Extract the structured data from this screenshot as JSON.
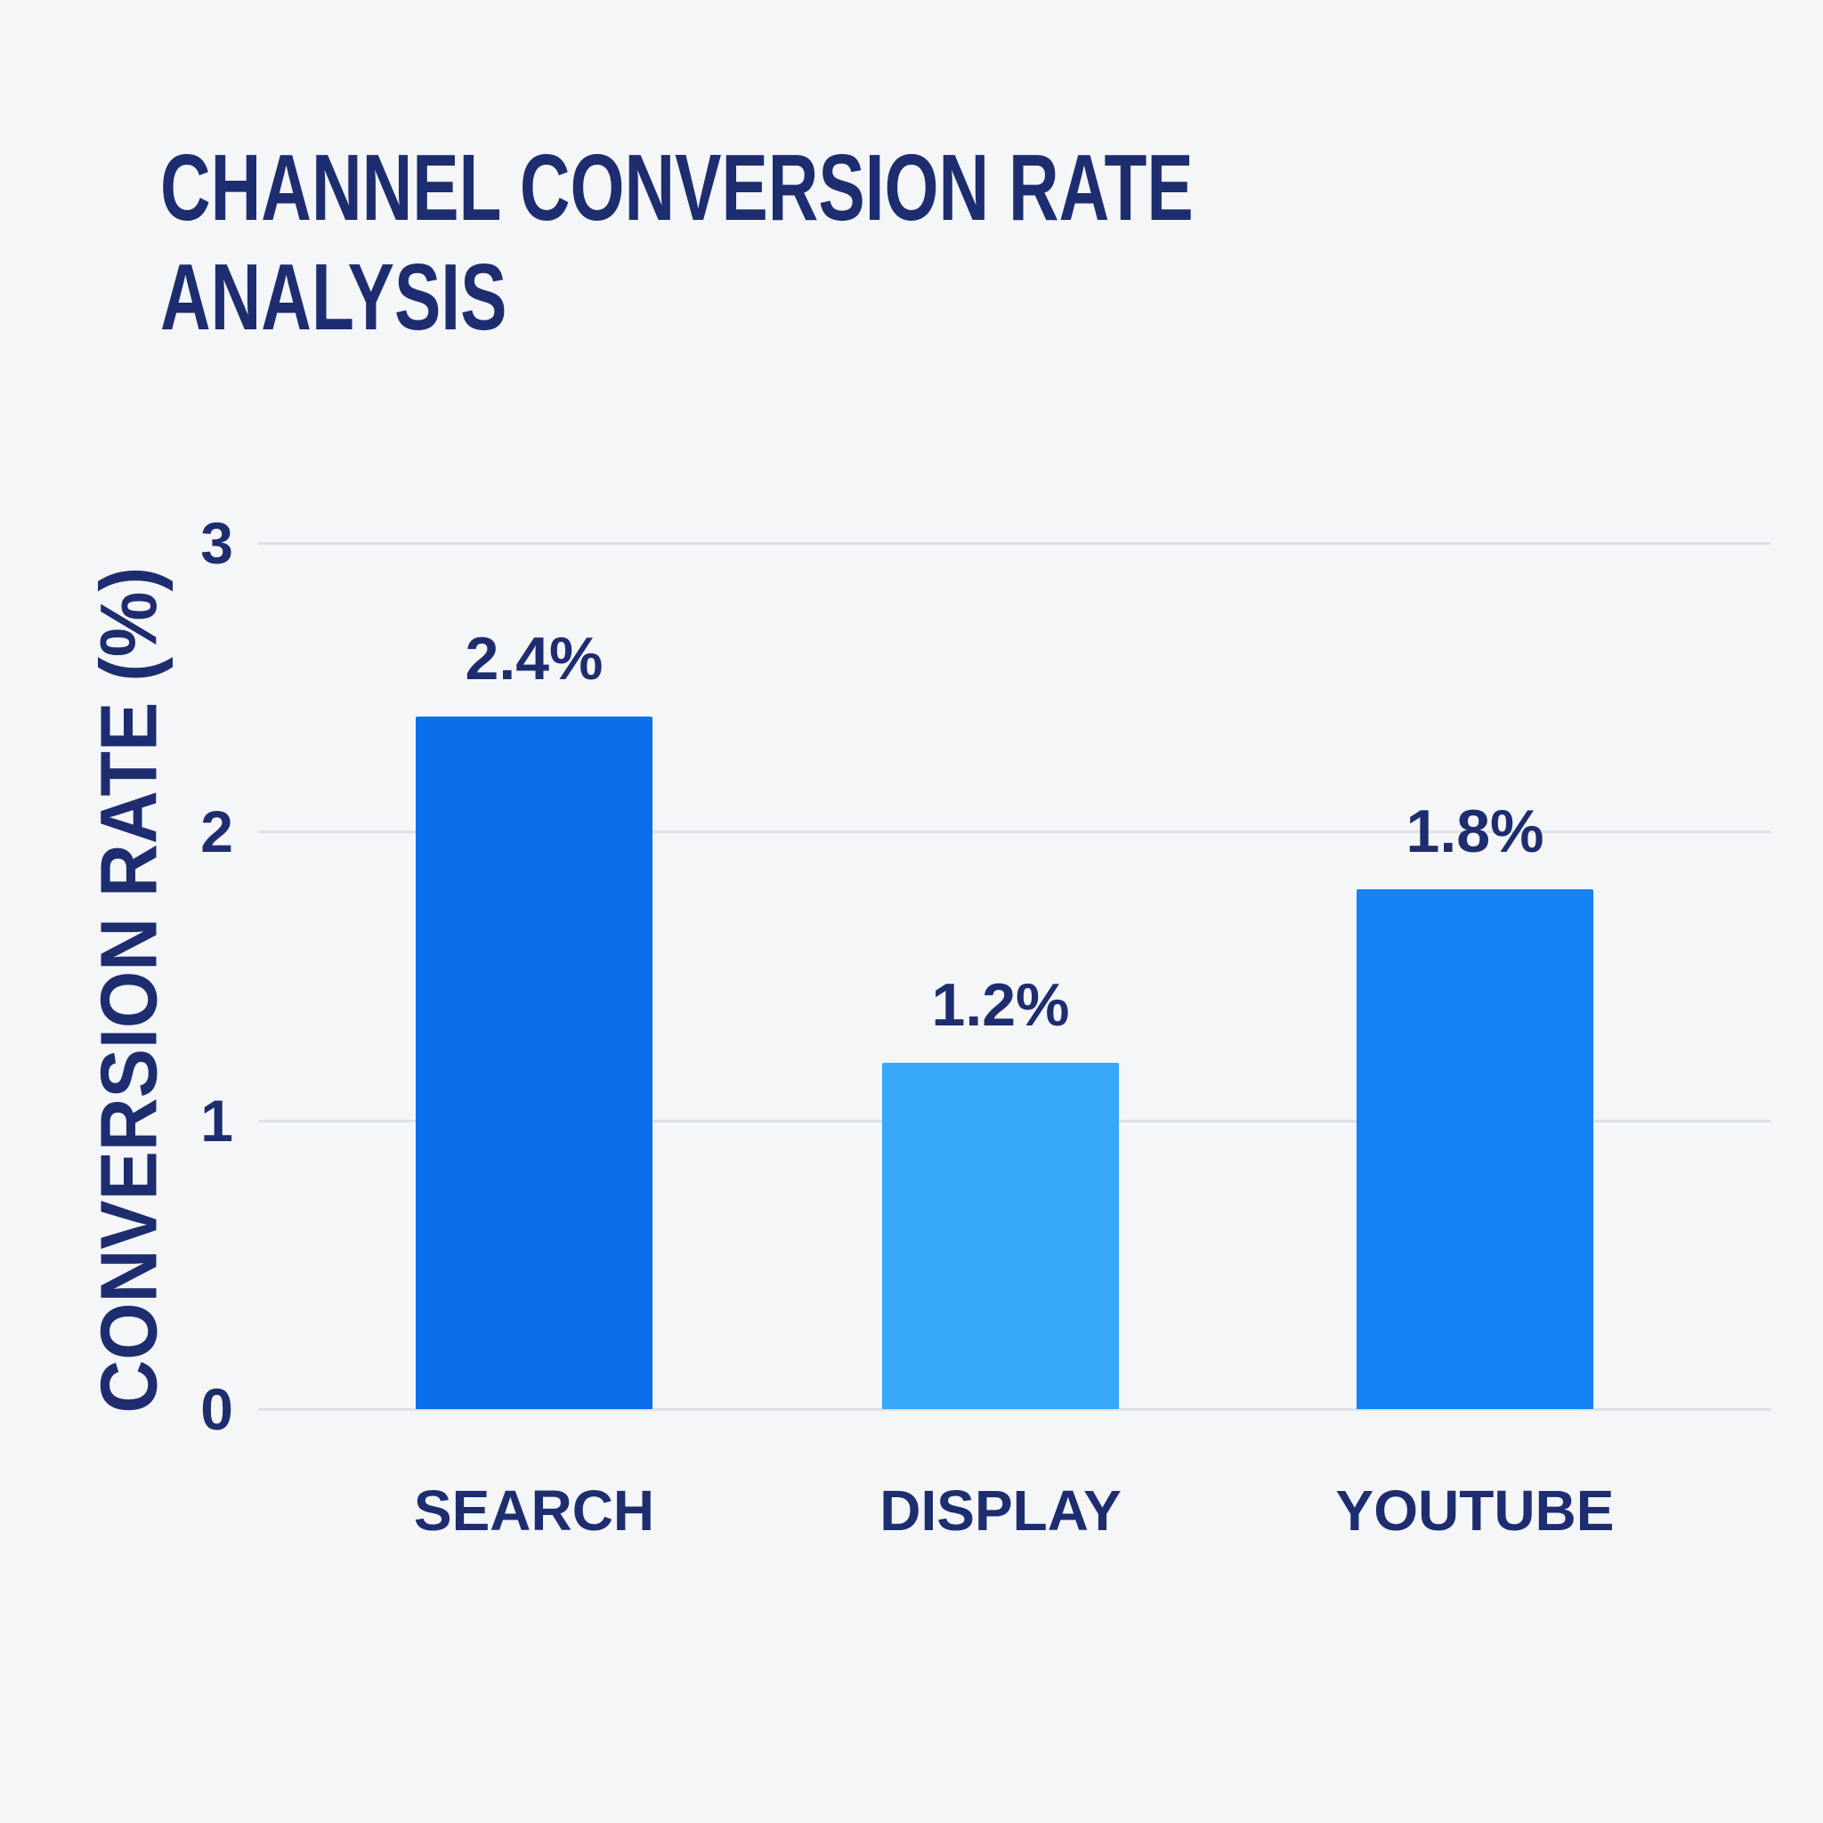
{
  "title": "CHANNEL CONVERSION RATE ANALYSIS",
  "chart_data": {
    "type": "bar",
    "title": "CHANNEL CONVERSION RATE ANALYSIS",
    "ylabel": "CONVERSION RATE (%)",
    "xlabel": "",
    "categories": [
      "SEARCH",
      "DISPLAY",
      "YOUTUBE"
    ],
    "values": [
      2.4,
      1.2,
      1.8
    ],
    "value_labels": [
      "2.4%",
      "1.2%",
      "1.8%"
    ],
    "bar_colors": [
      "#0b6eea",
      "#38a8f8",
      "#1481f5"
    ],
    "ylim": [
      0,
      3
    ],
    "yticks": [
      3,
      2,
      1,
      0
    ],
    "ytick_labels": [
      "3",
      "2",
      "1",
      "0"
    ],
    "grid": "horizontal",
    "legend": "none",
    "colors": {
      "background": "#f5f6f8",
      "text": "#1d2d6f",
      "gridline": "#dde1ea"
    }
  }
}
